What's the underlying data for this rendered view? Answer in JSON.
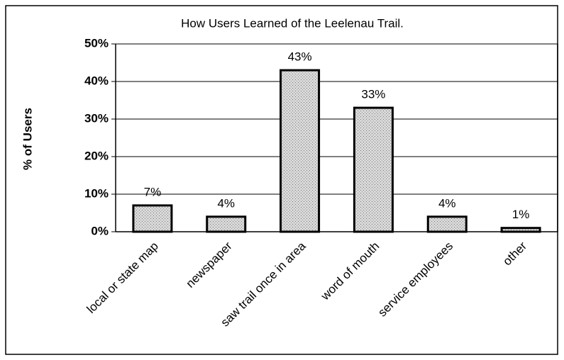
{
  "chart_data": {
    "type": "bar",
    "title": "How Users Learned of the Leelenau Trail.",
    "y_label": "% of Users",
    "categories": [
      "local or state map",
      "newspaper",
      "saw trail once in area",
      "word of mouth",
      "service employees",
      "other"
    ],
    "values": [
      7,
      4,
      43,
      33,
      4,
      1
    ],
    "value_labels": [
      "7%",
      "4%",
      "43%",
      "33%",
      "4%",
      "1%"
    ],
    "color": "#c8c8c8",
    "ylim": [
      0,
      50
    ],
    "yticks": [
      {
        "value": 0,
        "label": "0%"
      },
      {
        "value": 10,
        "label": "10%"
      },
      {
        "value": 20,
        "label": "20%"
      },
      {
        "value": 30,
        "label": "30%"
      },
      {
        "value": 40,
        "label": "40%"
      },
      {
        "value": 50,
        "label": "50%"
      }
    ],
    "grid": true
  }
}
